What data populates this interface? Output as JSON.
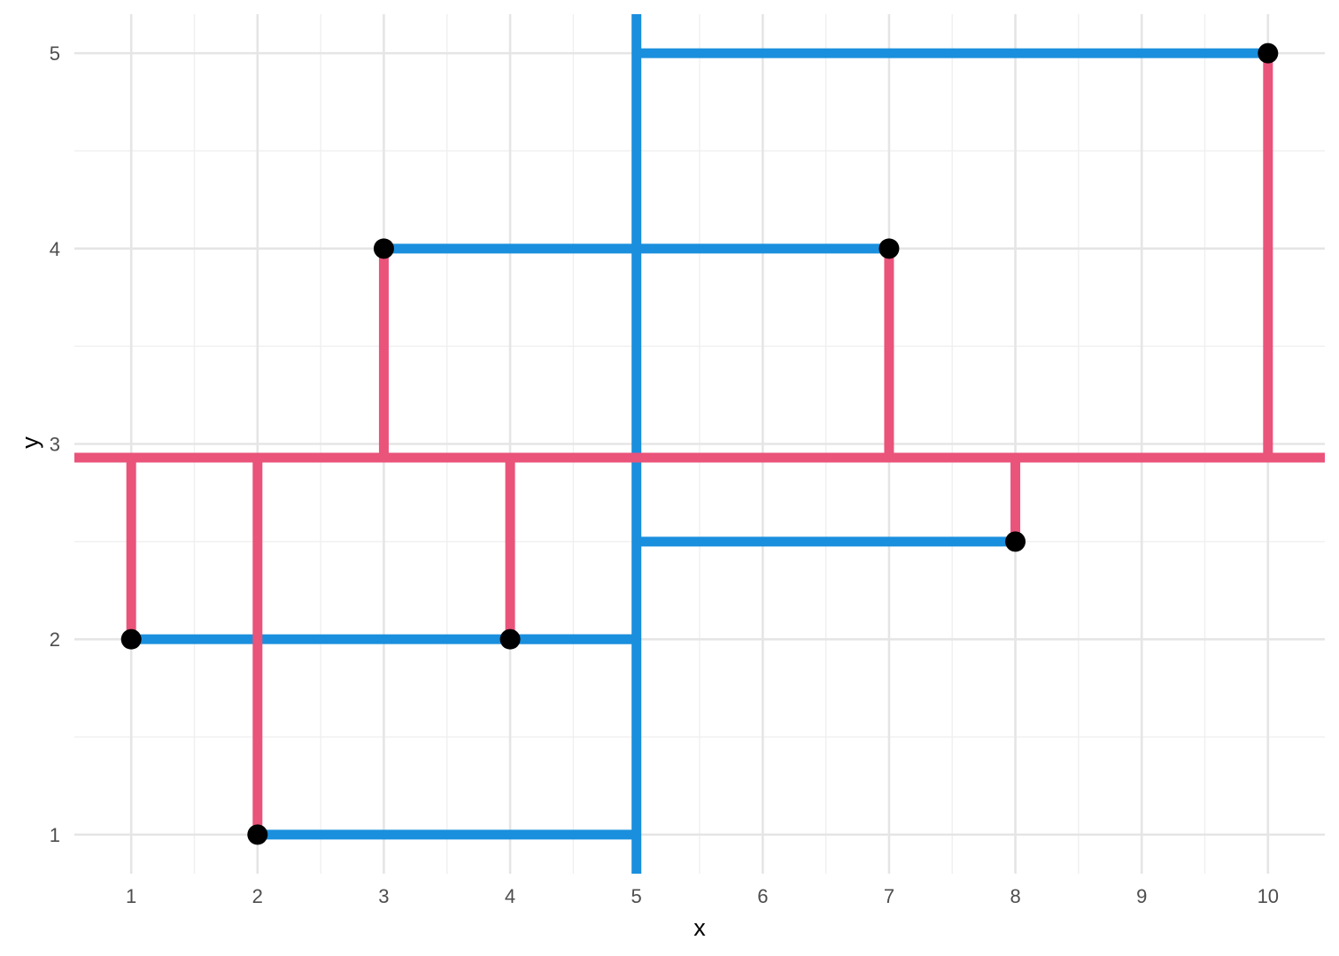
{
  "chart_data": {
    "type": "scatter",
    "title": "",
    "xlabel": "x",
    "ylabel": "y",
    "xlim": [
      0.55,
      10.45
    ],
    "ylim": [
      0.8,
      5.2
    ],
    "x_ticks": [
      1,
      2,
      3,
      4,
      5,
      6,
      7,
      8,
      9,
      10
    ],
    "y_ticks": [
      1,
      2,
      3,
      4,
      5
    ],
    "x_tick_labels": [
      "1",
      "2",
      "3",
      "4",
      "5",
      "6",
      "7",
      "8",
      "9",
      "10"
    ],
    "y_tick_labels": [
      "1",
      "2",
      "3",
      "4",
      "5"
    ],
    "grid": true,
    "legend": "none",
    "points": [
      {
        "x": 1,
        "y": 2
      },
      {
        "x": 2,
        "y": 1
      },
      {
        "x": 3,
        "y": 4
      },
      {
        "x": 4,
        "y": 2
      },
      {
        "x": 7,
        "y": 4
      },
      {
        "x": 8,
        "y": 2.5
      },
      {
        "x": 10,
        "y": 5
      }
    ],
    "splits": {
      "horizontal_split_y": 2.93,
      "vertical_split_x": 5
    },
    "colors": {
      "vertical_connector": "#EA537A",
      "horizontal_connector": "#1A8FDD",
      "point": "#000000",
      "grid_major": "#e5e5e5",
      "grid_minor": "#efefef"
    }
  }
}
